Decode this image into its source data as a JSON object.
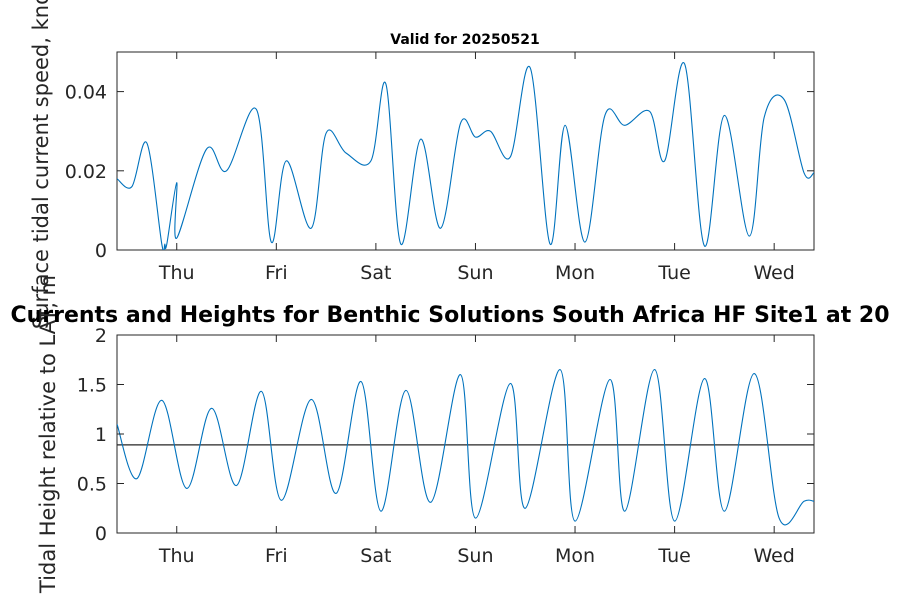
{
  "chart_data": [
    {
      "type": "line",
      "title": "Valid for 20250521",
      "ylabel": "Surface tidal current speed, knots",
      "xlabel": "",
      "x_ticks": [
        "Thu",
        "Fri",
        "Sat",
        "Sun",
        "Mon",
        "Tue",
        "Wed"
      ],
      "x_range_days": [
        -0.6,
        6.4
      ],
      "ylim": [
        0,
        0.05
      ],
      "y_ticks": [
        "0",
        "0.02",
        "0.04"
      ],
      "y_tick_values": [
        0,
        0.02,
        0.04
      ],
      "grid": false,
      "color": "#0072BD",
      "x": [
        -0.6,
        -0.45,
        -0.3,
        -0.1,
        0.0,
        -0.12,
        -0.15,
        0.0,
        0.3,
        0.5,
        0.8,
        0.95,
        1.1,
        1.35,
        1.5,
        1.7,
        1.95,
        2.1,
        2.25,
        2.45,
        2.65,
        2.85,
        3.0,
        3.15,
        3.35,
        3.55,
        3.75,
        3.9,
        4.1,
        4.3,
        4.5,
        4.75,
        4.9,
        5.1,
        5.3,
        5.5,
        5.75,
        5.9,
        6.1,
        6.3,
        6.4
      ],
      "values": [
        0.018,
        0.016,
        0.027,
        0.0015,
        0.017,
        0.0015,
        0.0015,
        0.003,
        0.0255,
        0.02,
        0.0355,
        0.002,
        0.0225,
        0.0055,
        0.0295,
        0.0245,
        0.0225,
        0.042,
        0.0015,
        0.028,
        0.0055,
        0.032,
        0.0285,
        0.03,
        0.0235,
        0.046,
        0.0015,
        0.0315,
        0.002,
        0.034,
        0.0315,
        0.035,
        0.0225,
        0.047,
        0.001,
        0.034,
        0.0035,
        0.0335,
        0.038,
        0.0195,
        0.0195
      ]
    },
    {
      "type": "line",
      "title": "Currents and Heights for Benthic Solutions South Africa HF Site1 at 20",
      "ylabel": "Tidal Height relative to LAT, m",
      "xlabel": "",
      "x_ticks": [
        "Thu",
        "Fri",
        "Sat",
        "Sun",
        "Mon",
        "Tue",
        "Wed"
      ],
      "x_range_days": [
        -0.6,
        6.4
      ],
      "ylim": [
        0,
        2
      ],
      "y_ticks": [
        "0",
        "0.5",
        "1",
        "1.5",
        "2"
      ],
      "y_tick_values": [
        0,
        0.5,
        1,
        1.5,
        2
      ],
      "grid": false,
      "color": "#0072BD",
      "reference_line": 0.89,
      "reference_color": "#262626",
      "x": [
        -0.6,
        -0.4,
        -0.15,
        0.1,
        0.35,
        0.6,
        0.85,
        1.05,
        1.35,
        1.6,
        1.85,
        2.05,
        2.3,
        2.55,
        2.85,
        3.0,
        3.35,
        3.5,
        3.85,
        4.0,
        4.35,
        4.5,
        4.8,
        5.0,
        5.3,
        5.5,
        5.8,
        6.05,
        6.3,
        6.4
      ],
      "values": [
        1.1,
        0.55,
        1.34,
        0.45,
        1.26,
        0.48,
        1.43,
        0.33,
        1.35,
        0.4,
        1.53,
        0.22,
        1.44,
        0.31,
        1.6,
        0.15,
        1.51,
        0.25,
        1.65,
        0.12,
        1.55,
        0.22,
        1.65,
        0.12,
        1.56,
        0.22,
        1.61,
        0.15,
        0.32,
        0.32
      ]
    }
  ]
}
